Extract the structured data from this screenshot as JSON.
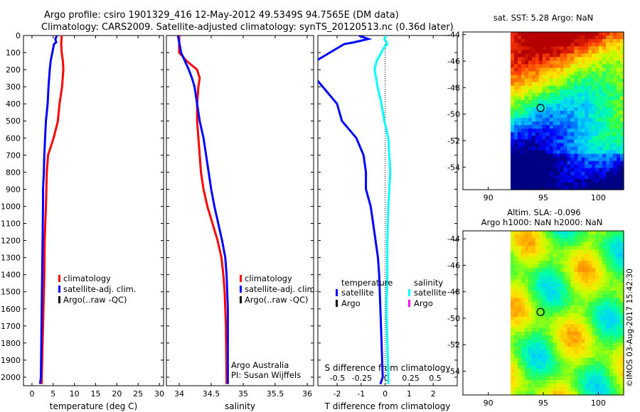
{
  "header": {
    "line1": "Argo profile: csiro 1901329_416 12-May-2012 49.5349S 94.7565E (DM data)",
    "line2": "Climatology: CARS2009. Satellite-adjusted climatology: synTS_20120513.nc (0.36d later)"
  },
  "colors": {
    "climatology": "#ff0000",
    "satellite": "#0000ff",
    "argo": "#000000",
    "sal_satellite": "#00ffff",
    "sal_argo": "#ff00ff"
  },
  "legend_common": {
    "climatology": "climatology",
    "satellite": "satellite-adj. clim.",
    "argo": "Argo(..raw -QC)"
  },
  "chart_data": [
    {
      "type": "line",
      "name": "temperature",
      "xlabel": "temperature (deg C)",
      "xlim": [
        -2,
        31
      ],
      "ylim": [
        0,
        2050
      ],
      "y_reversed": true,
      "x_ticks": [
        0,
        5,
        10,
        15,
        20,
        25,
        30
      ],
      "y_ticks": [
        0,
        100,
        200,
        300,
        400,
        500,
        600,
        700,
        800,
        900,
        1000,
        1100,
        1200,
        1300,
        1400,
        1500,
        1600,
        1700,
        1800,
        1900,
        2000
      ],
      "legend_position": "lower-center",
      "series": [
        {
          "key": "climatology",
          "depth": [
            0,
            50,
            100,
            150,
            200,
            300,
            400,
            500,
            600,
            700,
            800,
            900,
            1000,
            1200,
            1400,
            1600,
            1800,
            2000,
            2040
          ],
          "x": [
            7.0,
            6.9,
            7.0,
            7.3,
            7.4,
            7.1,
            6.5,
            6.1,
            5.1,
            3.8,
            3.5,
            3.4,
            3.3,
            3.0,
            2.9,
            2.7,
            2.5,
            2.3,
            2.3
          ]
        },
        {
          "key": "satellite",
          "depth": [
            0,
            20,
            40,
            50,
            75,
            100,
            150,
            200,
            300,
            400,
            500,
            600,
            700,
            800,
            900,
            1000,
            1200,
            1400,
            1600,
            1800,
            2000,
            2040
          ],
          "x": [
            5.9,
            5.5,
            5.7,
            5.2,
            5.0,
            4.8,
            4.4,
            4.2,
            3.9,
            3.7,
            3.3,
            3.1,
            2.9,
            2.8,
            2.6,
            2.6,
            2.5,
            2.4,
            2.3,
            2.2,
            2.1,
            1.9
          ]
        }
      ]
    },
    {
      "type": "line",
      "name": "salinity",
      "xlabel": "salinity",
      "xlim": [
        33.8,
        36.1
      ],
      "ylim": [
        0,
        2050
      ],
      "y_reversed": true,
      "x_ticks": [
        34,
        34.5,
        35,
        35.5,
        36
      ],
      "x_tick_labels": [
        "34",
        "34.5",
        "35",
        "35.5",
        "36"
      ],
      "legend_position": "lower-center",
      "annotation": [
        "Argo Australia",
        "PI: Susan Wijffels"
      ],
      "series": [
        {
          "key": "climatology",
          "depth": [
            0,
            100,
            150,
            200,
            250,
            300,
            400,
            500,
            600,
            700,
            800,
            900,
            1000,
            1100,
            1200,
            1300,
            1400,
            1500,
            1700,
            2000,
            2040
          ],
          "x": [
            34.0,
            34.0,
            34.12,
            34.28,
            34.32,
            34.3,
            34.28,
            34.28,
            34.3,
            34.32,
            34.34,
            34.38,
            34.44,
            34.52,
            34.6,
            34.66,
            34.69,
            34.71,
            34.73,
            34.74,
            34.74
          ]
        },
        {
          "key": "satellite",
          "depth": [
            0,
            100,
            150,
            200,
            250,
            300,
            400,
            500,
            600,
            700,
            800,
            900,
            1000,
            1100,
            1200,
            1300,
            1400,
            1500,
            1600,
            1800,
            2000,
            2040
          ],
          "x": [
            33.98,
            34.03,
            34.09,
            34.15,
            34.2,
            34.24,
            34.28,
            34.32,
            34.38,
            34.42,
            34.46,
            34.5,
            34.55,
            34.61,
            34.67,
            34.72,
            34.74,
            34.75,
            34.76,
            34.76,
            34.76,
            34.76
          ]
        }
      ]
    },
    {
      "type": "line",
      "name": "difference",
      "xlabel": "T difference from climatology",
      "xlabel_top": "S difference from climatology",
      "xlim": [
        -2.8,
        3.0
      ],
      "ylim": [
        0,
        2050
      ],
      "y_reversed": true,
      "x_ticks": [
        -2,
        -1,
        0,
        1,
        2
      ],
      "x_tick_labels": [
        "-2",
        "-1",
        "0",
        "1",
        "2"
      ],
      "x2_ticks": [
        -0.5,
        -0.25,
        0,
        0.25,
        0.5
      ],
      "x2_tick_labels": [
        "-0.5",
        "-0.25",
        "0",
        "0.25",
        "0.5"
      ],
      "x2_lim": [
        -0.7,
        0.725
      ],
      "legend_position": "lower-center",
      "legend": {
        "temperature_title": "temperature",
        "salinity_title": "salinity",
        "satellite": "satellite",
        "argo": "Argo"
      },
      "series": [
        {
          "key": "temperature",
          "depth": [
            0,
            20,
            40,
            50,
            75,
            100,
            150,
            200,
            250,
            300,
            400,
            500,
            600,
            700,
            800,
            900,
            1000,
            1100,
            1200,
            1300,
            1400,
            1600,
            1800,
            2000,
            2040
          ],
          "x": [
            -1.1,
            -0.7,
            -1.3,
            -1.7,
            -2.0,
            -2.3,
            -2.9,
            -3.2,
            -2.9,
            -2.6,
            -2.0,
            -1.8,
            -1.2,
            -0.9,
            -0.8,
            -0.8,
            -0.6,
            -0.5,
            -0.4,
            -0.3,
            -0.25,
            -0.2,
            -0.15,
            -0.1,
            -0.2
          ]
        },
        {
          "key": "salinity",
          "depth": [
            0,
            20,
            50,
            75,
            100,
            150,
            200,
            300,
            400,
            500,
            600,
            700,
            800,
            900,
            1000,
            1200,
            1400,
            1600,
            1800,
            2000,
            2040
          ],
          "x": [
            0.0,
            -0.02,
            0.01,
            -0.03,
            -0.05,
            -0.1,
            -0.12,
            -0.09,
            -0.05,
            -0.02,
            0.02,
            0.03,
            0.04,
            0.03,
            0.02,
            0.01,
            0.01,
            0.0,
            0.01,
            0.02,
            0.02
          ]
        }
      ]
    }
  ],
  "maps": {
    "sst": {
      "title": "sat. SST: 5.28 Argo: NaN",
      "lat_ticks": [
        -44,
        -46,
        -48,
        -50,
        -52,
        -54
      ],
      "lon_ticks": [
        90,
        95,
        100
      ],
      "marker": {
        "lon": 94.75,
        "lat": -49.53
      }
    },
    "sla": {
      "title1": "Altim. SLA: -0.096",
      "title2": "Argo h1000: NaN h2000: NaN",
      "lat_ticks": [
        -44,
        -46,
        -48,
        -50,
        -52,
        -54
      ],
      "lon_ticks": [
        90,
        95,
        100
      ],
      "marker": {
        "lon": 94.75,
        "lat": -49.53
      }
    }
  },
  "watermark": "©IMOS 03-Aug-2017 15:42:30"
}
